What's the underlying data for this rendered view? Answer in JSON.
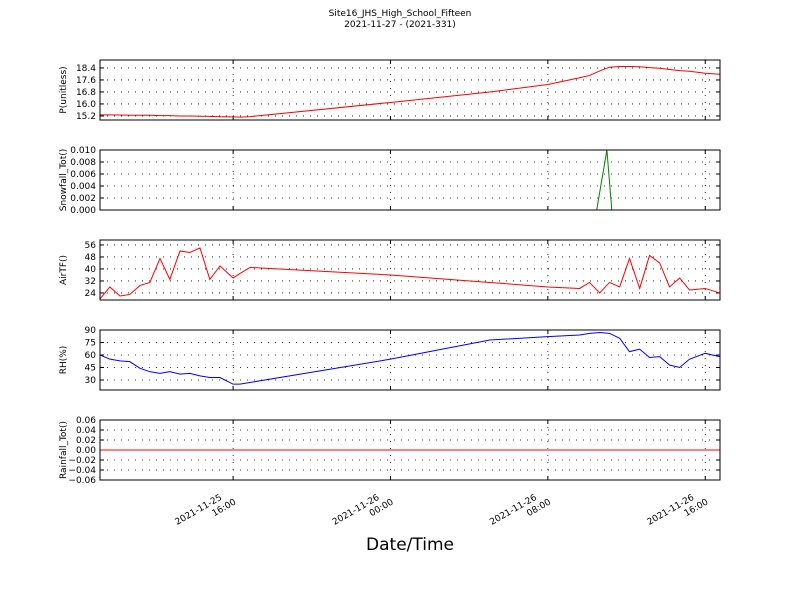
{
  "title": "Site16_JHS_High_School_Fifteen",
  "subtitle": "2021-11-27 - (2021-331)",
  "x_axis": {
    "label": "Date/Time",
    "lim": [
      "2021-11-25 09:14",
      "2021-11-26 16:45"
    ],
    "ticks": [
      "2021-11-25 16:00",
      "2021-11-26 00:00",
      "2021-11-26 08:00",
      "2021-11-26 16:00"
    ]
  },
  "chart_data": [
    {
      "type": "line",
      "ylabel": "P(unitless)",
      "ylim": [
        14.93,
        18.93
      ],
      "yticks": [
        {
          "value": 15.2,
          "label": "15.2"
        },
        {
          "value": 16,
          "label": "16.0"
        },
        {
          "value": 16.8,
          "label": "16.8"
        },
        {
          "value": 17.6,
          "label": "17.6"
        },
        {
          "value": 18.4,
          "label": "18.4"
        }
      ],
      "x": [
        "2021-11-25 09:14",
        "2021-11-25 09:44",
        "2021-11-25 10:15",
        "2021-11-25 10:45",
        "2021-11-25 11:16",
        "2021-11-25 11:46",
        "2021-11-25 12:17",
        "2021-11-25 12:47",
        "2021-11-25 13:18",
        "2021-11-25 13:48",
        "2021-11-25 14:19",
        "2021-11-25 14:49",
        "2021-11-25 15:20",
        "2021-11-25 16:00",
        "2021-11-25 16:21",
        "2021-11-25 16:51",
        "2021-11-26 00:00",
        "2021-11-26 05:03",
        "2021-11-26 08:00",
        "2021-11-26 09:37",
        "2021-11-26 10:07",
        "2021-11-26 10:38",
        "2021-11-26 11:08",
        "2021-11-26 11:39",
        "2021-11-26 12:09",
        "2021-11-26 12:40",
        "2021-11-26 13:10",
        "2021-11-26 13:41",
        "2021-11-26 14:11",
        "2021-11-26 14:42",
        "2021-11-26 15:12",
        "2021-11-26 16:00",
        "2021-11-26 16:44"
      ],
      "series": [
        {
          "color": "#ff0000",
          "values": [
            15.27,
            15.27,
            15.26,
            15.25,
            15.25,
            15.25,
            15.22,
            15.22,
            15.2,
            15.2,
            15.18,
            15.17,
            15.15,
            15.14,
            15.12,
            15.15,
            16.1,
            16.8,
            17.3,
            17.75,
            17.9,
            18.2,
            18.45,
            18.5,
            18.5,
            18.48,
            18.42,
            18.38,
            18.3,
            18.22,
            18.18,
            18.05,
            17.98
          ]
        }
      ]
    },
    {
      "type": "line",
      "ylabel": "Snowfall_Tot()",
      "ylim": [
        0,
        0.01
      ],
      "yticks": [
        {
          "value": 0,
          "label": "0.000"
        },
        {
          "value": 0.002,
          "label": "0.002"
        },
        {
          "value": 0.004,
          "label": "0.004"
        },
        {
          "value": 0.006,
          "label": "0.006"
        },
        {
          "value": 0.008,
          "label": "0.008"
        },
        {
          "value": 0.01,
          "label": "0.010"
        }
      ],
      "x": [
        "2021-11-25 09:14",
        "2021-11-26 10:29",
        "2021-11-26 11:00",
        "2021-11-26 11:15",
        "2021-11-26 16:44"
      ],
      "series": [
        {
          "color": "#008000",
          "values": [
            0,
            0,
            0.01,
            0,
            0
          ]
        }
      ]
    },
    {
      "type": "line",
      "ylabel": "AirTF()",
      "ylim": [
        19.3,
        59.3
      ],
      "yticks": [
        24,
        32,
        40,
        48,
        56
      ],
      "x": [
        "2021-11-25 09:14",
        "2021-11-25 09:44",
        "2021-11-25 10:15",
        "2021-11-25 10:45",
        "2021-11-25 11:16",
        "2021-11-25 11:46",
        "2021-11-25 12:17",
        "2021-11-25 12:47",
        "2021-11-25 13:18",
        "2021-11-25 13:48",
        "2021-11-25 14:19",
        "2021-11-25 14:49",
        "2021-11-25 15:20",
        "2021-11-25 16:00",
        "2021-11-25 16:21",
        "2021-11-25 16:51",
        "2021-11-26 00:00",
        "2021-11-26 05:03",
        "2021-11-26 08:00",
        "2021-11-26 09:37",
        "2021-11-26 10:07",
        "2021-11-26 10:38",
        "2021-11-26 11:08",
        "2021-11-26 11:39",
        "2021-11-26 12:09",
        "2021-11-26 12:40",
        "2021-11-26 13:10",
        "2021-11-26 13:41",
        "2021-11-26 14:11",
        "2021-11-26 14:42",
        "2021-11-26 15:12",
        "2021-11-26 16:00",
        "2021-11-26 16:44"
      ],
      "series": [
        {
          "color": "#ff0000",
          "values": [
            20,
            28,
            22,
            23,
            29,
            31,
            47,
            33,
            52,
            51,
            54,
            33,
            42,
            34,
            37,
            41,
            36,
            31,
            28,
            27,
            31,
            24,
            31,
            28,
            47,
            27,
            49,
            44,
            28,
            34,
            26,
            27,
            24
          ]
        }
      ]
    },
    {
      "type": "line",
      "ylabel": "RH(%)",
      "ylim": [
        18,
        90
      ],
      "yticks": [
        30,
        45,
        60,
        75,
        90
      ],
      "x": [
        "2021-11-25 09:14",
        "2021-11-25 09:44",
        "2021-11-25 10:15",
        "2021-11-25 10:45",
        "2021-11-25 11:16",
        "2021-11-25 11:46",
        "2021-11-25 12:17",
        "2021-11-25 12:47",
        "2021-11-25 13:18",
        "2021-11-25 13:48",
        "2021-11-25 14:19",
        "2021-11-25 14:49",
        "2021-11-25 15:20",
        "2021-11-25 16:00",
        "2021-11-25 16:21",
        "2021-11-25 16:51",
        "2021-11-26 00:00",
        "2021-11-26 05:03",
        "2021-11-26 08:00",
        "2021-11-26 09:37",
        "2021-11-26 10:07",
        "2021-11-26 10:38",
        "2021-11-26 11:08",
        "2021-11-26 11:39",
        "2021-11-26 12:09",
        "2021-11-26 12:40",
        "2021-11-26 13:10",
        "2021-11-26 13:41",
        "2021-11-26 14:11",
        "2021-11-26 14:42",
        "2021-11-26 15:12",
        "2021-11-26 16:00",
        "2021-11-26 16:44"
      ],
      "series": [
        {
          "color": "#0000ff",
          "values": [
            60,
            55,
            53,
            52,
            44,
            40,
            38,
            40,
            37,
            38,
            35,
            33,
            33,
            25,
            25,
            27,
            55,
            78,
            82,
            84,
            86,
            87,
            86,
            80,
            64,
            67,
            57,
            58,
            48,
            45,
            55,
            62,
            58
          ]
        }
      ]
    },
    {
      "type": "line",
      "ylabel": "Rainfall_Tot()",
      "ylim": [
        -0.06,
        0.06
      ],
      "yticks": [
        {
          "value": -0.06,
          "label": "−0.06"
        },
        {
          "value": -0.04,
          "label": "−0.04"
        },
        {
          "value": -0.02,
          "label": "−0.02"
        },
        {
          "value": 0,
          "label": "0.00"
        },
        {
          "value": 0.02,
          "label": "0.02"
        },
        {
          "value": 0.04,
          "label": "0.04"
        },
        {
          "value": 0.06,
          "label": "0.06"
        }
      ],
      "x": [
        "2021-11-25 09:14",
        "2021-11-26 16:44"
      ],
      "series": [
        {
          "color": "#ff0000",
          "values": [
            0,
            0
          ]
        }
      ]
    }
  ]
}
